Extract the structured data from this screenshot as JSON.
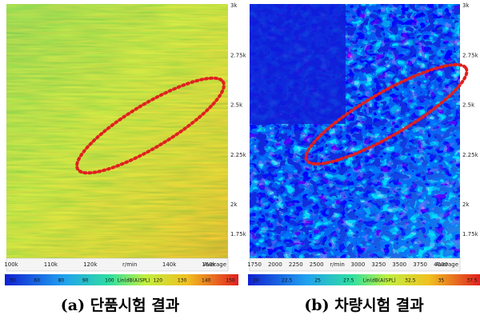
{
  "panels": [
    {
      "caption": "(a) 단품시험 결과",
      "yticks": [
        "3k",
        "2.75k",
        "2.5k",
        "2.25k",
        "2k",
        "1.75k"
      ],
      "xticks": [
        "100k",
        "110k",
        "120k",
        "r/min",
        "140k",
        "160k"
      ],
      "average": "Average",
      "colorbar": [
        "30",
        "60",
        "80",
        "90",
        "100",
        "Lin(dB(A)SPL)",
        "120",
        "130",
        "140",
        "150"
      ]
    },
    {
      "caption": "(b) 차량시험 결과",
      "yticks": [
        "3k",
        "2.75k",
        "2.5k",
        "2.25k",
        "2k",
        "1.75k"
      ],
      "xticks": [
        "1750",
        "2000",
        "2250",
        "2500",
        "r/min",
        "3000",
        "3250",
        "3500",
        "3750",
        "4000"
      ],
      "average": "Average",
      "colorbar": [
        "20",
        "22.5",
        "25",
        "27.5",
        "Lin(dB(A)SPL)",
        "32.5",
        "35",
        "37.5"
      ]
    }
  ]
}
